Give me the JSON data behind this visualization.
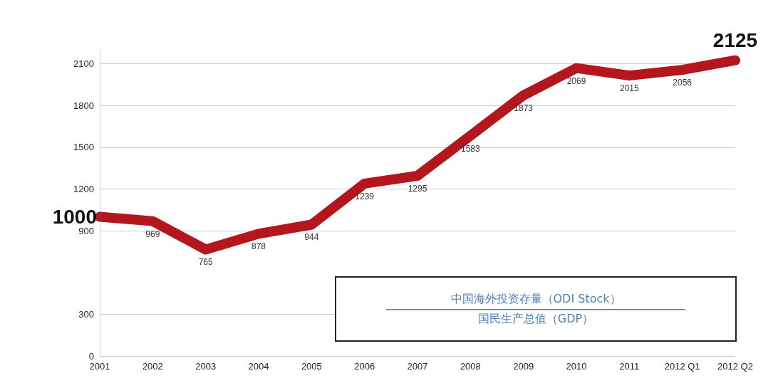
{
  "chart_data": {
    "type": "line",
    "categories": [
      "2001",
      "2002",
      "2003",
      "2004",
      "2005",
      "2006",
      "2007",
      "2008",
      "2009",
      "2010",
      "2011",
      "2012 Q1",
      "2012 Q2"
    ],
    "series": [
      {
        "color": "#b3161d",
        "values": [
          1000,
          969,
          765,
          878,
          944,
          1239,
          1295,
          1583,
          1873,
          2069,
          2015,
          2056,
          2125
        ]
      }
    ],
    "ylim": [
      0,
      2200
    ],
    "yticks": [
      0,
      300,
      900,
      1200,
      1500,
      1800,
      2100
    ],
    "grid": "y",
    "data_labels": true,
    "marker": "none",
    "line_style": "solid",
    "annotations": [
      "中国海外投资存量（ODI Stock）",
      "国民生产总值（GDP）"
    ]
  }
}
